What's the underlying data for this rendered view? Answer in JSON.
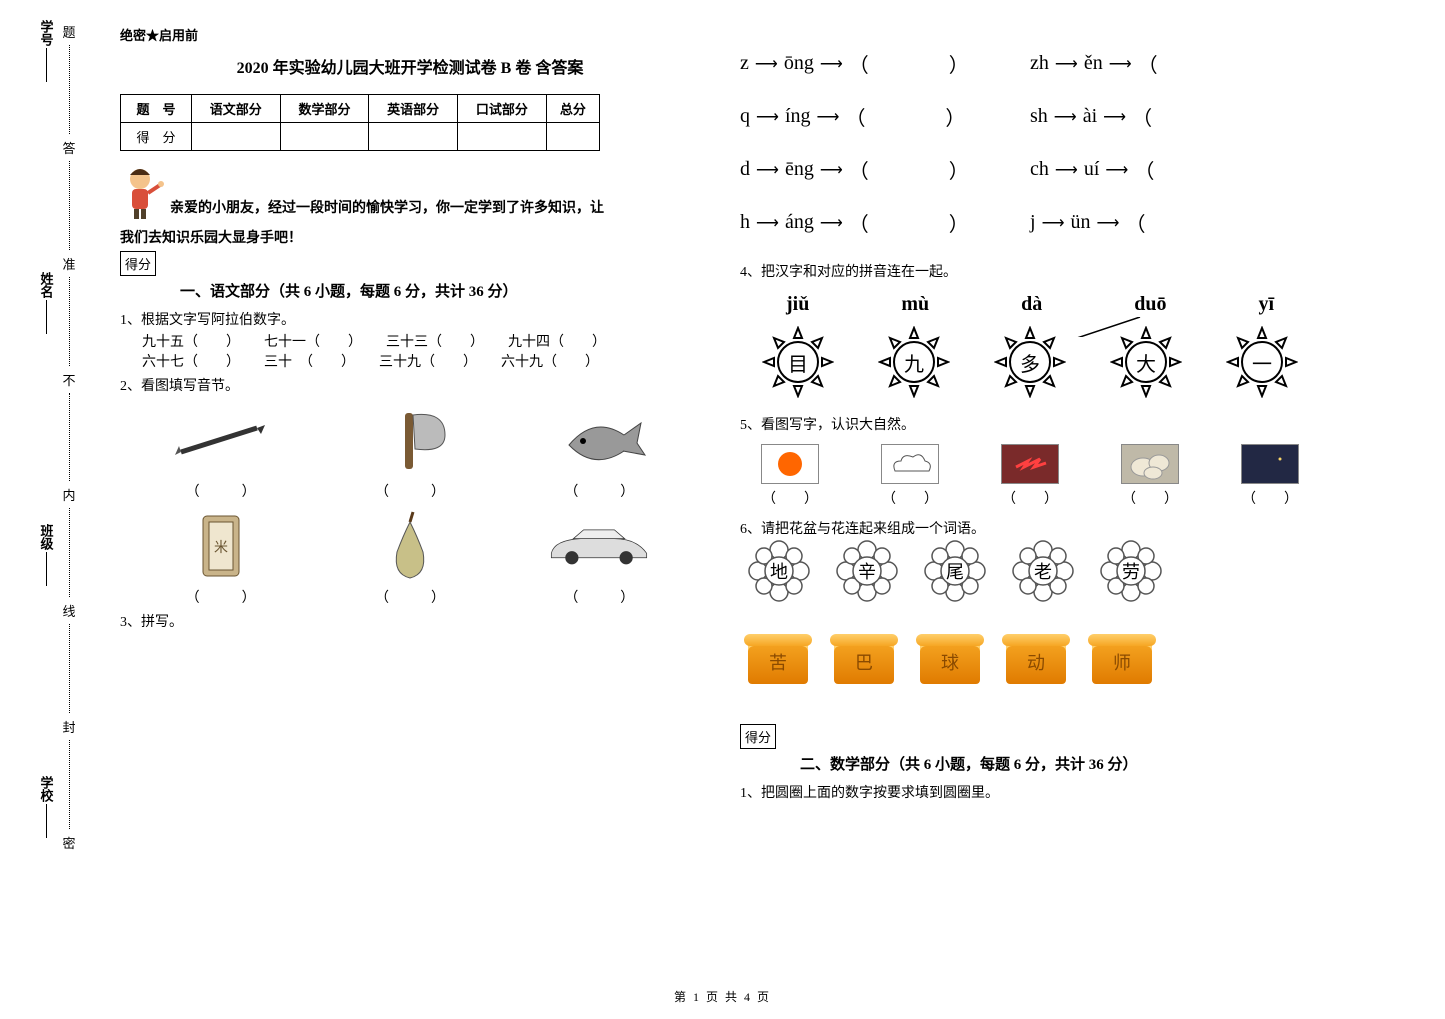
{
  "side": {
    "labels": [
      "学号",
      "姓名",
      "班级",
      "学校"
    ],
    "cutline_chars": [
      "题",
      "答",
      "准",
      "不",
      "内",
      "线",
      "封",
      "密"
    ]
  },
  "header": {
    "confidential": "绝密★启用前",
    "title": "2020 年实验幼儿园大班开学检测试卷 B 卷 含答案"
  },
  "score_table": {
    "headers": [
      "题　号",
      "语文部分",
      "数学部分",
      "英语部分",
      "口试部分",
      "总分"
    ],
    "row_label": "得　分"
  },
  "intro": {
    "line1": "亲爱的小朋友，经过一段时间的愉快学习，你一定学到了许多知识，让",
    "line2": "我们去知识乐园大显身手吧！"
  },
  "score_box_label": "得分",
  "section1": {
    "title": "一、语文部分（共 6 小题，每题 6 分，共计 36 分）",
    "q1": {
      "prompt": "1、根据文字写阿拉伯数字。",
      "items_row1": [
        "九十五（　　）",
        "七十一（　　）",
        "三十三（　　）",
        "九十四（　　）"
      ],
      "items_row2": [
        "六十七（　　）",
        "三十　（　　）",
        "三十九（　　）",
        "六十九（　　）"
      ]
    },
    "q2": {
      "prompt": "2、看图填写音节。",
      "images_row1": [
        "pencil",
        "axe",
        "fish"
      ],
      "images_row2": [
        "rice-bag",
        "pear",
        "car"
      ],
      "blank": "（　　　）"
    },
    "q3": {
      "prompt": "3、拼写。"
    },
    "pinyin_rows": [
      {
        "left": [
          "z",
          "ōng"
        ],
        "right": [
          "zh",
          "ěn"
        ]
      },
      {
        "left": [
          "q",
          "íng"
        ],
        "right": [
          "sh",
          "ài"
        ]
      },
      {
        "left": [
          "d",
          "ēng"
        ],
        "right": [
          "ch",
          "uí"
        ]
      },
      {
        "left": [
          "h",
          "áng"
        ],
        "right": [
          "j",
          "ün"
        ]
      }
    ],
    "q4": {
      "prompt": "4、把汉字和对应的拼音连在一起。",
      "pinyins": [
        "jiǔ",
        "mù",
        "dà",
        "duō",
        "yī"
      ],
      "chars": [
        "目",
        "九",
        "多",
        "大",
        "一"
      ]
    },
    "q5": {
      "prompt": "5、看图写字，认识大自然。",
      "images": [
        "sun",
        "cloud",
        "lightning",
        "stones",
        "moon"
      ],
      "blank": "（　　）"
    },
    "q6": {
      "prompt": "6、请把花盆与花连起来组成一个词语。",
      "flowers": [
        "地",
        "辛",
        "尾",
        "老",
        "劳"
      ],
      "pots": [
        "苦",
        "巴",
        "球",
        "动",
        "师"
      ]
    }
  },
  "section2": {
    "title": "二、数学部分（共 6 小题，每题 6 分，共计 36 分）",
    "q1": {
      "prompt": "1、把圆圈上面的数字按要求填到圆圈里。"
    }
  },
  "footer": "第 1 页 共 4 页",
  "colors": {
    "pot_top": "#ffcf6b",
    "pot_mid": "#f6a623",
    "pot_bottom": "#e07b00",
    "sun_bg": "#ff6600",
    "moon_bg": "#222844",
    "lightning_bg": "#7a2a2a",
    "cloud_bg": "#ffffff",
    "stone_bg": "#e8e2d4"
  }
}
